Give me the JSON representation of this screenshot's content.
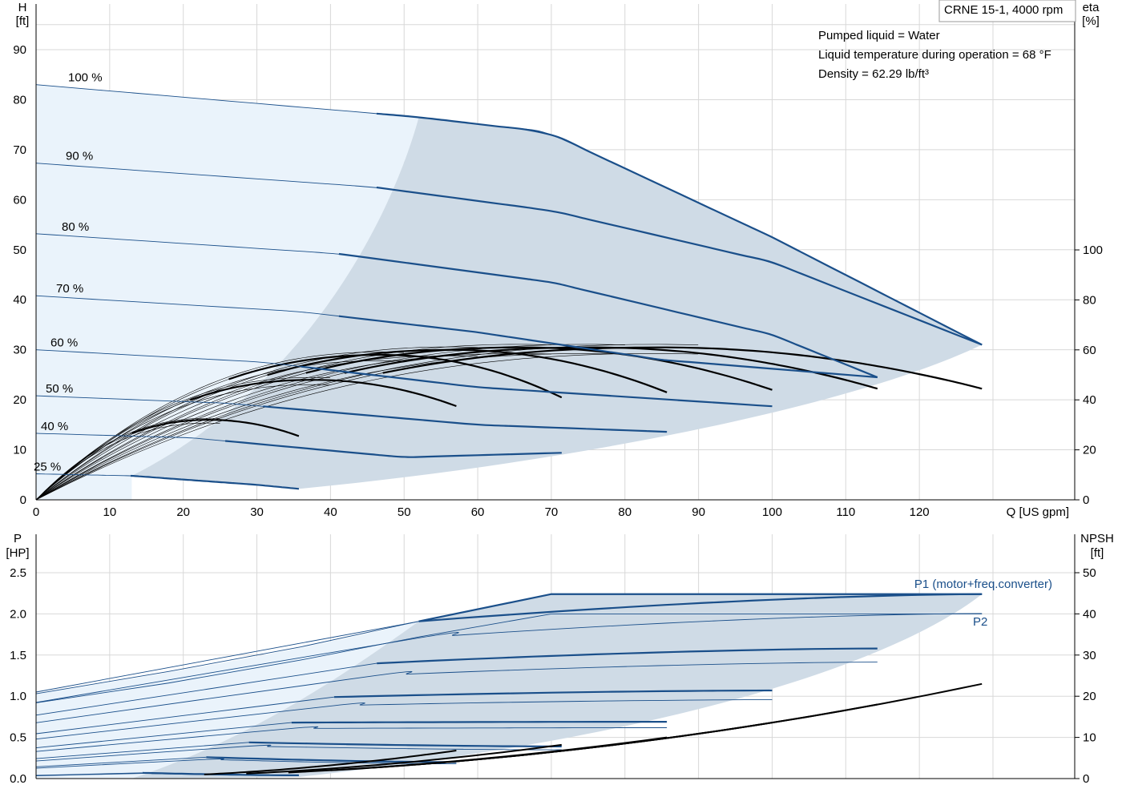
{
  "header": {
    "model_label": "CRNE 15-1, 4000 rpm",
    "info_lines": [
      "Pumped liquid = Water",
      "Liquid temperature during operation = 68 °F",
      "Density = 62.29 lb/ft³"
    ]
  },
  "colors": {
    "curve": "#1a4f8a",
    "region_light": "#eaf3fb",
    "region_dark": "#cfdbe6",
    "efficiency": "#000000"
  },
  "chart_data": [
    {
      "type": "line",
      "title": "CRNE 15-1, 4000 rpm",
      "xlabel": "Q [US gpm]",
      "ylabel": "H [ft]",
      "y2label": "eta [%]",
      "xlim": [
        0,
        132
      ],
      "ylim": [
        0,
        97
      ],
      "y2lim": [
        0,
        100
      ],
      "x_ticks": [
        0,
        10,
        20,
        30,
        40,
        50,
        60,
        70,
        80,
        90,
        100,
        110,
        120
      ],
      "y_ticks": [
        0,
        10,
        20,
        30,
        40,
        50,
        60,
        70,
        80,
        90
      ],
      "y2_ticks": [
        0,
        20,
        40,
        60,
        80,
        100
      ],
      "grid": true,
      "series": [
        {
          "name": "100 %",
          "q_max": 128.5,
          "points": [
            [
              0,
              83
            ],
            [
              52,
              76.5
            ],
            [
              69.5,
              73.5
            ],
            [
              100,
              52.5
            ],
            [
              128.5,
              31
            ]
          ]
        },
        {
          "name": "90 %",
          "q_max": 128.5,
          "points": [
            [
              0,
              67.3
            ],
            [
              46,
              62.5
            ],
            [
              70,
              57.8
            ],
            [
              100,
              47.5
            ],
            [
              128.5,
              31
            ]
          ]
        },
        {
          "name": "80 %",
          "q_max": 114.3,
          "points": [
            [
              0,
              53.2
            ],
            [
              41,
              49.2
            ],
            [
              70,
              43.5
            ],
            [
              100,
              33
            ],
            [
              114.3,
              24.5
            ]
          ]
        },
        {
          "name": "70 %",
          "q_max": 114.3,
          "points": [
            [
              0,
              40.8
            ],
            [
              36,
              37.6
            ],
            [
              60,
              33.5
            ],
            [
              85,
              28
            ],
            [
              114.3,
              24.5
            ]
          ]
        },
        {
          "name": "60 %",
          "q_max": 100,
          "points": [
            [
              0,
              30
            ],
            [
              31,
              27.5
            ],
            [
              60,
              22.5
            ],
            [
              100,
              18.7
            ]
          ]
        },
        {
          "name": "50 %",
          "q_max": 85.7,
          "points": [
            [
              0,
              20.8
            ],
            [
              26,
              19.3
            ],
            [
              60,
              15
            ],
            [
              85.7,
              13.6
            ]
          ]
        },
        {
          "name": "40 %",
          "q_max": 71.4,
          "points": [
            [
              0,
              13.3
            ],
            [
              21,
              12.4
            ],
            [
              50,
              8.5
            ],
            [
              71.4,
              9.4
            ]
          ]
        },
        {
          "name": "25 %",
          "q_max": 35.7,
          "points": [
            [
              0,
              5.2
            ],
            [
              13,
              4.8
            ],
            [
              30,
              3
            ],
            [
              35.7,
              2.2
            ]
          ]
        }
      ],
      "efficiency_percent": {
        "q_max": [
          35.7,
          57.1,
          71.4,
          85.7,
          100,
          114.3,
          128.5
        ],
        "peak_eta": [
          32,
          48,
          58,
          60,
          61,
          61,
          61
        ],
        "end_eta": [
          25.5,
          37.5,
          41,
          43,
          44,
          44.5,
          44.5
        ]
      },
      "operating_range": {
        "q_min_percent_of_max": 10,
        "q_max": 128.5
      }
    },
    {
      "type": "line",
      "xlabel": "Q [US gpm]",
      "ylabel": "P [HP]",
      "y2label": "NPSH [ft]",
      "xlim": [
        0,
        132
      ],
      "ylim": [
        0,
        2.5
      ],
      "y2lim": [
        0,
        50
      ],
      "y_ticks": [
        0.0,
        0.5,
        1.0,
        1.5,
        2.0,
        2.5
      ],
      "y2_ticks": [
        0,
        10,
        20,
        30,
        40,
        50
      ],
      "grid": true,
      "series": [
        {
          "name": "P1 (motor+freq.converter)",
          "points": [
            [
              0,
              1.03
            ],
            [
              52,
              1.91
            ],
            [
              70,
              2.24
            ],
            [
              128.5,
              2.24
            ]
          ]
        },
        {
          "name": "P2",
          "points": [
            [
              0,
              0.92
            ],
            [
              52,
              1.72
            ],
            [
              70,
              2.0
            ],
            [
              128.5,
              2.0
            ]
          ]
        }
      ],
      "npsh_ft": {
        "q_max": [
          57.1,
          71.4,
          85.7,
          100,
          114.3,
          128.5
        ],
        "end_npsh": [
          6.8,
          8.2,
          10.0,
          13.6,
          18.0,
          23.0
        ]
      },
      "p1_speed_curves": [
        {
          "q_max": 128.5,
          "p_start": 1.91,
          "p_end": 2.24
        },
        {
          "q_max": 114.3,
          "p_start": 1.4,
          "p_end": 1.58
        },
        {
          "q_max": 100,
          "p_start": 0.99,
          "p_end": 1.07
        },
        {
          "q_max": 85.7,
          "p_start": 0.68,
          "p_end": 0.69
        },
        {
          "q_max": 71.4,
          "p_start": 0.44,
          "p_end": 0.39
        },
        {
          "q_max": 57.1,
          "p_start": 0.26,
          "p_end": 0.2
        },
        {
          "q_max": 35.7,
          "p_start": 0.07,
          "p_end": 0.04
        }
      ]
    }
  ]
}
